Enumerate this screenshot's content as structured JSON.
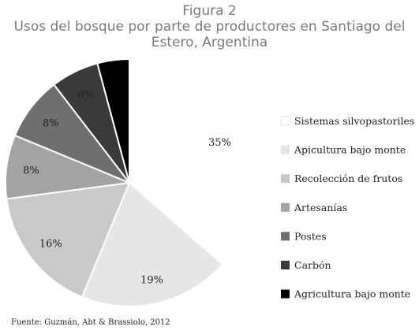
{
  "figure_number": "Figura 2",
  "chart_data": {
    "type": "pie",
    "title": "Usos del bosque por parte de productores en Santiago del Estero, Argentina",
    "categories": [
      "Sistemas silvopastoriles",
      "Apicultura bajo monte",
      "Recolección de frutos",
      "Artesanías",
      "Postes",
      "Carbón",
      "Agricultura bajo monte"
    ],
    "values": [
      35,
      19,
      16,
      8,
      8,
      6,
      4
    ],
    "slice_labels": [
      "35%",
      "19%",
      "16%",
      "8%",
      "8%",
      "6%",
      ""
    ],
    "colors": [
      "#ffffff",
      "#e6e6e6",
      "#c9c9c9",
      "#a3a3a3",
      "#6f6f6f",
      "#3a3a3a",
      "#000000"
    ],
    "legend_placement": "right"
  },
  "source": "Fuente: Guzmán, Abt & Brassiolo, 2012"
}
